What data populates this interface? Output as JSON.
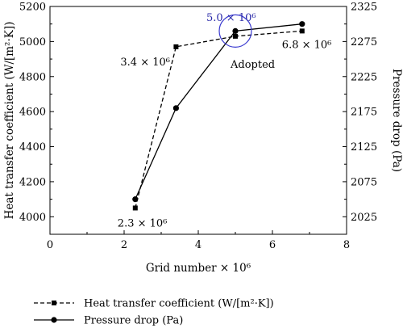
{
  "chart_data": {
    "type": "line",
    "xlabel": "Grid number × 10⁶",
    "ylabel_left": "Heat transfer coefficient (W/[m²·K])",
    "ylabel_right": "Pressure drop (Pa)",
    "xlim": [
      0,
      8
    ],
    "ylim_left": [
      3900,
      5200
    ],
    "ylim_right": [
      2000,
      2325
    ],
    "x_ticks": [
      "0",
      "2",
      "4",
      "6",
      "8"
    ],
    "y_left_ticks": [
      "4000",
      "4200",
      "4400",
      "4600",
      "4800",
      "5000",
      "5200"
    ],
    "y_right_ticks": [
      "2025",
      "2075",
      "2125",
      "2175",
      "2225",
      "2275",
      "2325"
    ],
    "grid": false,
    "legend_position": "bottom",
    "series": [
      {
        "name": "Heat transfer coefficient (W/[m²·K])",
        "axis": "left",
        "marker": "square",
        "line": "dashed",
        "x": [
          2.3,
          3.4,
          5.0,
          6.8
        ],
        "y": [
          4050,
          4970,
          5030,
          5060
        ]
      },
      {
        "name": "Pressure drop (Pa)",
        "axis": "right",
        "marker": "circle",
        "line": "solid",
        "x": [
          2.3,
          3.4,
          5.0,
          6.8
        ],
        "y": [
          2050,
          2180,
          2290,
          2300
        ]
      }
    ],
    "annotations": [
      {
        "text": "2.3 × 10⁶",
        "color": "#000000"
      },
      {
        "text": "3.4 × 10⁶",
        "color": "#000000"
      },
      {
        "text": "5.0 × 10⁶",
        "color": "#2a2aa8"
      },
      {
        "text": "6.8 × 10⁶",
        "color": "#000000"
      },
      {
        "text": "Adopted",
        "color": "#000000"
      }
    ],
    "highlight_circle_color": "#3a3ad0"
  }
}
